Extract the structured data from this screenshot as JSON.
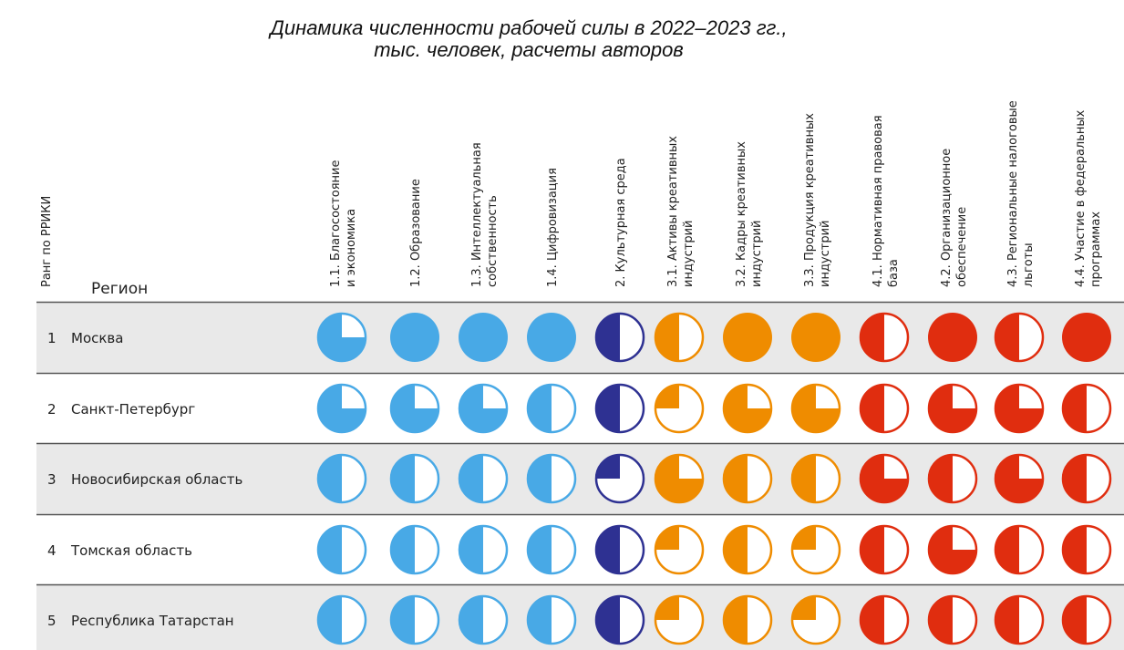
{
  "title": [
    "Динамика численности рабочей силы в 2022–2023 гг.,",
    "тыс. человек, расчеты авторов"
  ],
  "rank_header": "Ранг по РРИКИ",
  "region_header": "Регион",
  "columns": [
    {
      "label": [
        "1.1. Благосостояние",
        "и экономика"
      ],
      "color": "#48a9e6"
    },
    {
      "label": [
        "1.2. Образование"
      ],
      "color": "#48a9e6"
    },
    {
      "label": [
        "1.3. Интеллектуальная",
        "собственность"
      ],
      "color": "#48a9e6"
    },
    {
      "label": [
        "1.4. Цифровизация"
      ],
      "color": "#48a9e6"
    },
    {
      "label": [
        "2. Культурная среда"
      ],
      "color": "#2e3192"
    },
    {
      "label": [
        "3.1. Активы креативных",
        "индустрий"
      ],
      "color": "#ef8c00"
    },
    {
      "label": [
        "3.2. Кадры креативных",
        "индустрий"
      ],
      "color": "#ef8c00"
    },
    {
      "label": [
        "3.3. Продукция креативных",
        "индустрий"
      ],
      "color": "#ef8c00"
    },
    {
      "label": [
        "4.1. Нормативная правовая",
        "база"
      ],
      "color": "#e02d0f"
    },
    {
      "label": [
        "4.2. Организационное",
        "обеспечение"
      ],
      "color": "#e02d0f"
    },
    {
      "label": [
        "4.3. Региональные налоговые",
        "льготы"
      ],
      "color": "#e02d0f"
    },
    {
      "label": [
        "4.4. Участие в федеральных",
        "программах"
      ],
      "color": "#e02d0f"
    }
  ],
  "rows": [
    {
      "rank": "1",
      "region": "Москва",
      "values": [
        3,
        4,
        4,
        4,
        2,
        2,
        4,
        4,
        2,
        4,
        2,
        4
      ]
    },
    {
      "rank": "2",
      "region": "Санкт-Петербург",
      "values": [
        3,
        3,
        3,
        2,
        2,
        1,
        3,
        3,
        2,
        3,
        3,
        2
      ]
    },
    {
      "rank": "3",
      "region": "Новосибирская область",
      "values": [
        2,
        2,
        2,
        2,
        1,
        3,
        2,
        2,
        3,
        2,
        3,
        2
      ]
    },
    {
      "rank": "4",
      "region": "Томская область",
      "values": [
        2,
        2,
        2,
        2,
        2,
        1,
        2,
        1,
        2,
        3,
        2,
        2
      ]
    },
    {
      "rank": "5",
      "region": "Республика Татарстан",
      "values": [
        2,
        2,
        2,
        2,
        2,
        1,
        2,
        1,
        2,
        2,
        2,
        2
      ]
    }
  ],
  "scale_max": 4
}
